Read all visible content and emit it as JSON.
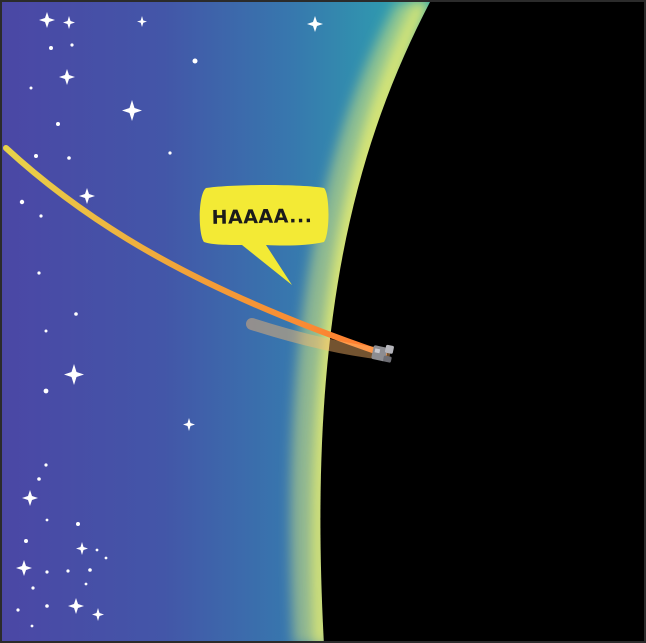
{
  "scene": {
    "description_free": true,
    "colors": {
      "space_left": "#4a4aa6",
      "space_mid": "#2f7fb2",
      "atmosphere_edge": "#2fb3a8",
      "limb_glow": "#d9e77a",
      "planet": "#000000",
      "trail_start": "#e4c84a",
      "trail_end": "#ff8c3a",
      "bubble": "#f2ea35",
      "star": "#ffffff"
    },
    "icons": {
      "spacecraft": "spacecraft-icon",
      "star": "star-icon"
    }
  },
  "speech_bubble": {
    "text": "HAAAA..."
  }
}
